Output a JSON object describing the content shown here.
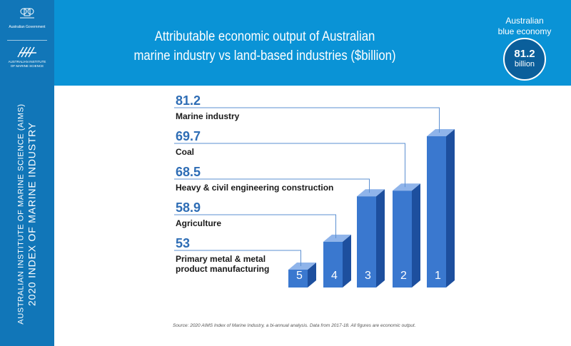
{
  "sidebar": {
    "gov_label": "Australian Government",
    "aims_label": "AUSTRALIAN INSTITUTE\nOF MARINE SCIENCE",
    "vertical_line1": "AUSTRALIAN INSTITUTE OF MARINE SCIENCE (AIMS)",
    "vertical_line2": "2020 INDEX OF MARINE INDUSTRY"
  },
  "header": {
    "title": "Attributable economic output of Australian\nmarine industry vs land-based industries ($billion)",
    "badge_label": "Australian\nblue economy",
    "badge_value": "81.2",
    "badge_unit": "billion"
  },
  "chart_data": {
    "type": "bar",
    "title": "Attributable economic output of Australian marine industry vs land-based industries ($billion)",
    "categories": [
      "Marine industry",
      "Coal",
      "Heavy & civil engineering construction",
      "Agriculture",
      "Primary metal & metal product manufacturing"
    ],
    "label_lines": [
      [
        "Marine industry"
      ],
      [
        "Coal"
      ],
      [
        "Heavy & civil engineering construction"
      ],
      [
        "Agriculture"
      ],
      [
        "Primary metal & metal",
        "product manufacturing"
      ]
    ],
    "values": [
      81.2,
      69.7,
      68.5,
      58.9,
      53
    ],
    "value_labels": [
      "81.2",
      "69.7",
      "68.5",
      "58.9",
      "53"
    ],
    "ranks": [
      "1",
      "2",
      "3",
      "4",
      "5"
    ],
    "unit": "$billion",
    "colors": {
      "bar_front": "#3a78cf",
      "bar_side": "#1d4f9e",
      "bar_top": "#8fb4ea",
      "value_text": "#2e6db5",
      "leader": "#5b8fd1"
    }
  },
  "footer": {
    "source": "Source: 2020 AIMS Index of Marine Industry, a bi-annual analysis. Data from 2017-18. All figures are economic output."
  }
}
